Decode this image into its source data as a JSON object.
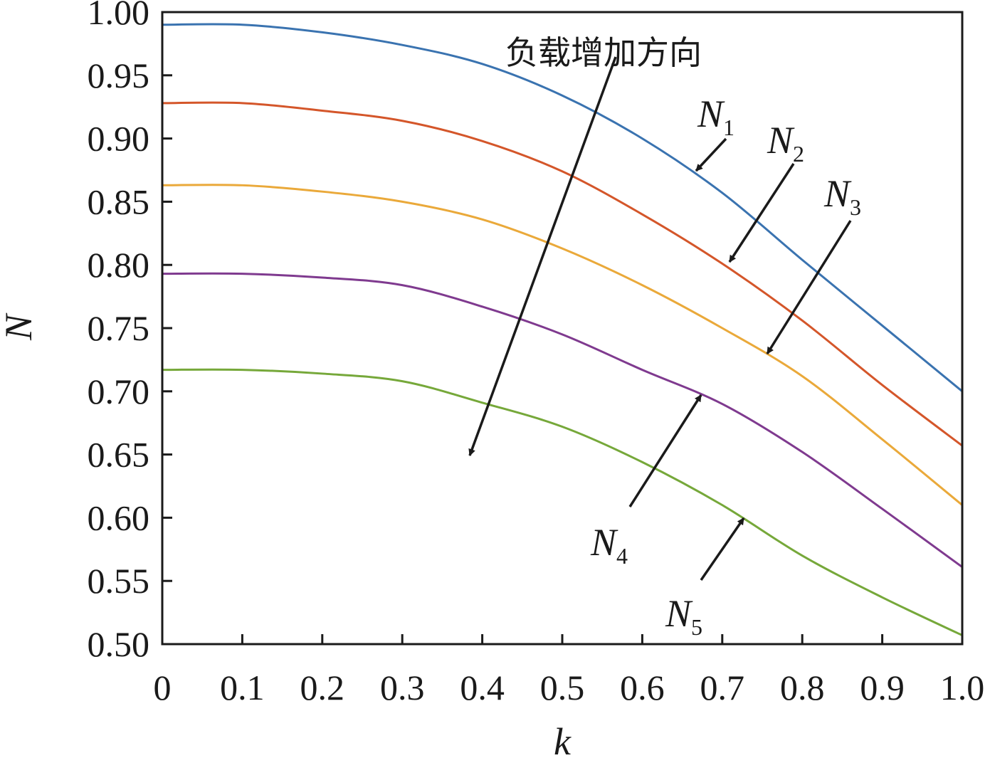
{
  "chart_data": {
    "type": "line",
    "title": "",
    "xlabel": "k",
    "ylabel": "N",
    "xlim": [
      0,
      1.0
    ],
    "ylim": [
      0.5,
      1.0
    ],
    "grid": false,
    "x_ticks": [
      "0",
      "0.1",
      "0.2",
      "0.3",
      "0.4",
      "0.5",
      "0.6",
      "0.7",
      "0.8",
      "0.9",
      "1.0"
    ],
    "y_ticks": [
      "0.50",
      "0.55",
      "0.60",
      "0.65",
      "0.70",
      "0.75",
      "0.80",
      "0.85",
      "0.90",
      "0.95",
      "1.00"
    ],
    "x": [
      0,
      0.1,
      0.2,
      0.3,
      0.4,
      0.5,
      0.6,
      0.7,
      0.8,
      0.9,
      1.0
    ],
    "series": [
      {
        "name": "N1",
        "label_main": "N",
        "label_sub": "1",
        "color": "#3a73b0",
        "values": [
          0.99,
          0.99,
          0.984,
          0.974,
          0.959,
          0.934,
          0.9,
          0.857,
          0.804,
          0.752,
          0.7
        ]
      },
      {
        "name": "N2",
        "label_main": "N",
        "label_sub": "2",
        "color": "#d4562a",
        "values": [
          0.928,
          0.928,
          0.922,
          0.914,
          0.898,
          0.874,
          0.84,
          0.801,
          0.756,
          0.705,
          0.657
        ]
      },
      {
        "name": "N3",
        "label_main": "N",
        "label_sub": "3",
        "color": "#eaa93a",
        "values": [
          0.863,
          0.863,
          0.858,
          0.85,
          0.836,
          0.813,
          0.784,
          0.75,
          0.712,
          0.662,
          0.61
        ]
      },
      {
        "name": "N4",
        "label_main": "N",
        "label_sub": "4",
        "color": "#7f3a8f",
        "values": [
          0.793,
          0.793,
          0.79,
          0.784,
          0.767,
          0.745,
          0.717,
          0.69,
          0.652,
          0.607,
          0.561
        ]
      },
      {
        "name": "N5",
        "label_main": "N",
        "label_sub": "5",
        "color": "#76a83a",
        "values": [
          0.717,
          0.717,
          0.714,
          0.708,
          0.691,
          0.672,
          0.644,
          0.61,
          0.57,
          0.537,
          0.507
        ]
      }
    ],
    "annotations": {
      "load_direction": "负载增加方向"
    }
  }
}
